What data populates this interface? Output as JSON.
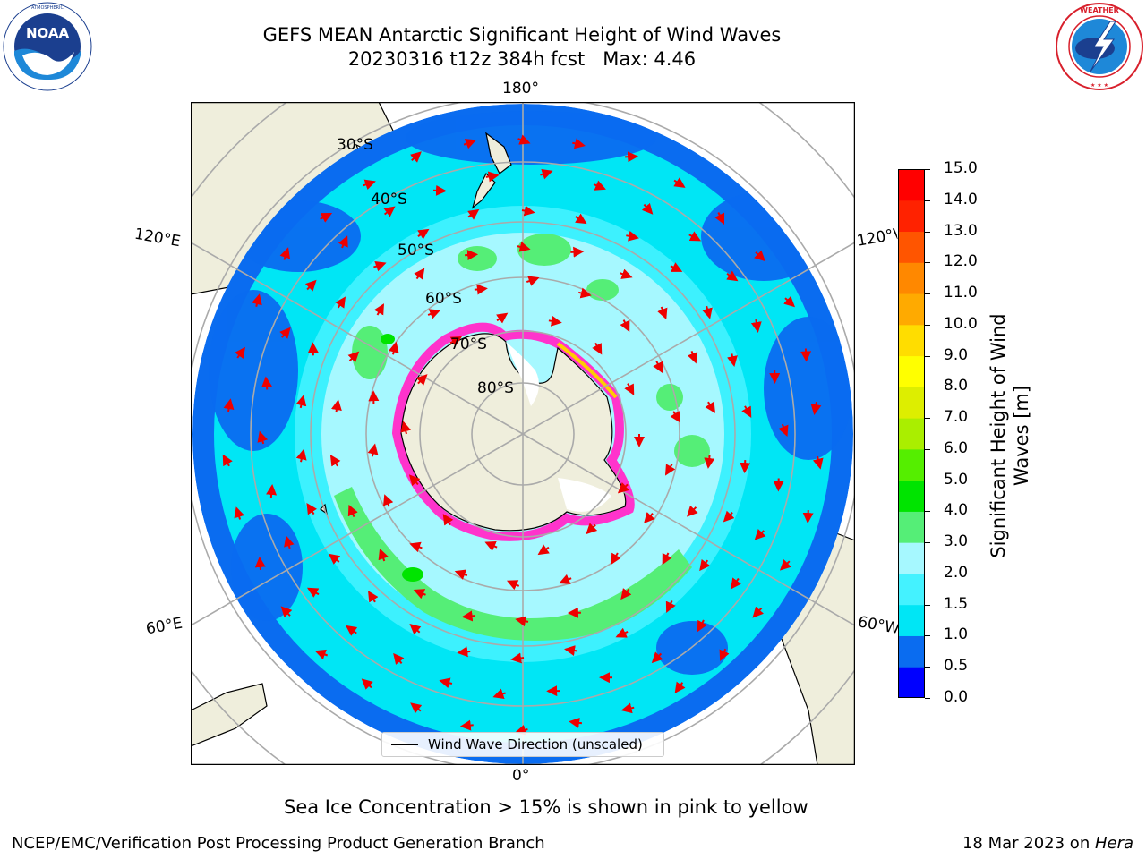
{
  "title": {
    "line1": "GEFS MEAN Antarctic Significant Height of Wind Waves",
    "line2": "20230316 t12z 384h fcst   Max: 4.46"
  },
  "logos": {
    "left": {
      "name": "NOAA",
      "ring_text": "NATIONAL OCEANIC AND ATMOSPHERIC ADMINISTRATION · U.S. DEPARTMENT OF COMMERCE",
      "colors": [
        "#1b3f8f",
        "#1e88d8",
        "#ffffff"
      ]
    },
    "right": {
      "name": "NATIONAL WEATHER SERVICE",
      "colors": [
        "#d8202c",
        "#1b3f8f",
        "#ffffff"
      ]
    }
  },
  "map": {
    "projection": "south polar stereographic",
    "longitude_labels": {
      "top": "180°",
      "bottom": "0°",
      "left_upper": "120°E",
      "left_lower": "60°E",
      "right_upper": "120°W",
      "right_lower": "60°W"
    },
    "latitude_labels": [
      "30°S",
      "40°S",
      "50°S",
      "60°S",
      "70°S",
      "80°S"
    ],
    "colors": {
      "land": "#efeedc",
      "ocean_calm": "#0a6cf0",
      "ocean_mid": "#00e6f5",
      "ocean_light": "#a6f8ff",
      "ocean_high": "#55ee77",
      "ice": "#ff33cc",
      "arrow": "#ee0000",
      "grid": "#aaaaaa"
    },
    "legend": "Wind Wave Direction (unscaled)"
  },
  "colorbar": {
    "label": "Significant Height of Wind Waves [m]",
    "label_line1": "Significant Height of Wind",
    "label_line2": "Waves [m]",
    "ticks": [
      "15.0",
      "14.0",
      "13.0",
      "12.0",
      "11.0",
      "10.0",
      "9.0",
      "8.0",
      "7.0",
      "6.0",
      "5.0",
      "4.0",
      "3.0",
      "2.0",
      "1.5",
      "1.0",
      "0.5",
      "0.0"
    ],
    "segment_colors_bottom_to_top": [
      "#0000ff",
      "#0a6cf0",
      "#00e6f5",
      "#44f2ff",
      "#a6f8ff",
      "#55ee77",
      "#00e400",
      "#55ee00",
      "#aaee00",
      "#ddee00",
      "#ffff00",
      "#ffdd00",
      "#ffaa00",
      "#ff8800",
      "#ff5500",
      "#ff2200",
      "#ff0000"
    ]
  },
  "note": "Sea Ice Concentration > 15% is shown in pink to yellow",
  "footer": {
    "left": "NCEP/EMC/Verification Post Processing Product Generation Branch",
    "right_date": "18 Mar 2023 on ",
    "right_machine": "Hera"
  }
}
